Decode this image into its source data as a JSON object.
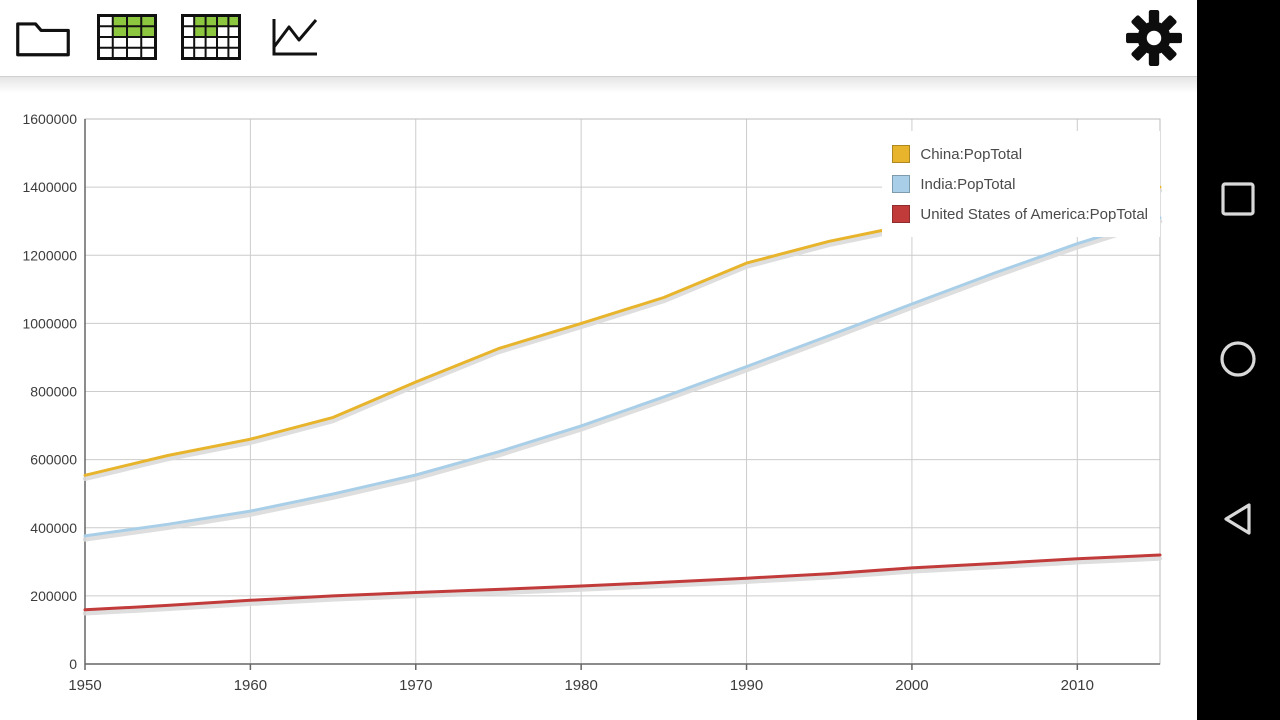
{
  "toolbar": {
    "icons": [
      {
        "name": "folder-icon"
      },
      {
        "name": "table-grid-icon"
      },
      {
        "name": "table-grid-dense-icon"
      },
      {
        "name": "line-chart-icon"
      },
      {
        "name": "settings-gear-icon"
      }
    ],
    "colors": {
      "icon_black": "#111111",
      "cell_green": "#8DC63F"
    }
  },
  "android_navbar": {
    "background": "#000000",
    "icon_color": "#D9D9D9",
    "buttons": [
      {
        "name": "recents-button",
        "shape": "square"
      },
      {
        "name": "home-button",
        "shape": "circle"
      },
      {
        "name": "back-button",
        "shape": "triangle-left"
      }
    ]
  },
  "chart_data": {
    "type": "line",
    "title": "",
    "xlabel": "",
    "ylabel": "",
    "x_range": [
      1950,
      2015
    ],
    "y_range": [
      0,
      1600000
    ],
    "x_ticks": [
      1950,
      1960,
      1970,
      1980,
      1990,
      2000,
      2010
    ],
    "y_ticks": [
      0,
      200000,
      400000,
      600000,
      800000,
      1000000,
      1200000,
      1400000,
      1600000
    ],
    "grid": true,
    "legend_position": "top-right",
    "x": [
      1950,
      1955,
      1960,
      1965,
      1970,
      1975,
      1980,
      1985,
      1990,
      1995,
      2000,
      2005,
      2010,
      2015
    ],
    "series": [
      {
        "name": "China:PopTotal",
        "color": "#E7B42C",
        "values": [
          554000,
          612000,
          660000,
          724000,
          828000,
          926000,
          1000000,
          1076000,
          1177000,
          1241000,
          1291000,
          1331000,
          1369000,
          1400000
        ]
      },
      {
        "name": "India:PopTotal",
        "color": "#A9CFE8",
        "values": [
          376000,
          410000,
          449000,
          499000,
          555000,
          623000,
          699000,
          784000,
          873000,
          964000,
          1057000,
          1148000,
          1234000,
          1310000
        ]
      },
      {
        "name": "United States of America:PopTotal",
        "color": "#C23B3B",
        "values": [
          159000,
          172000,
          187000,
          200000,
          210000,
          219000,
          229000,
          240000,
          252000,
          265000,
          282000,
          295000,
          309000,
          320000
        ]
      }
    ]
  }
}
